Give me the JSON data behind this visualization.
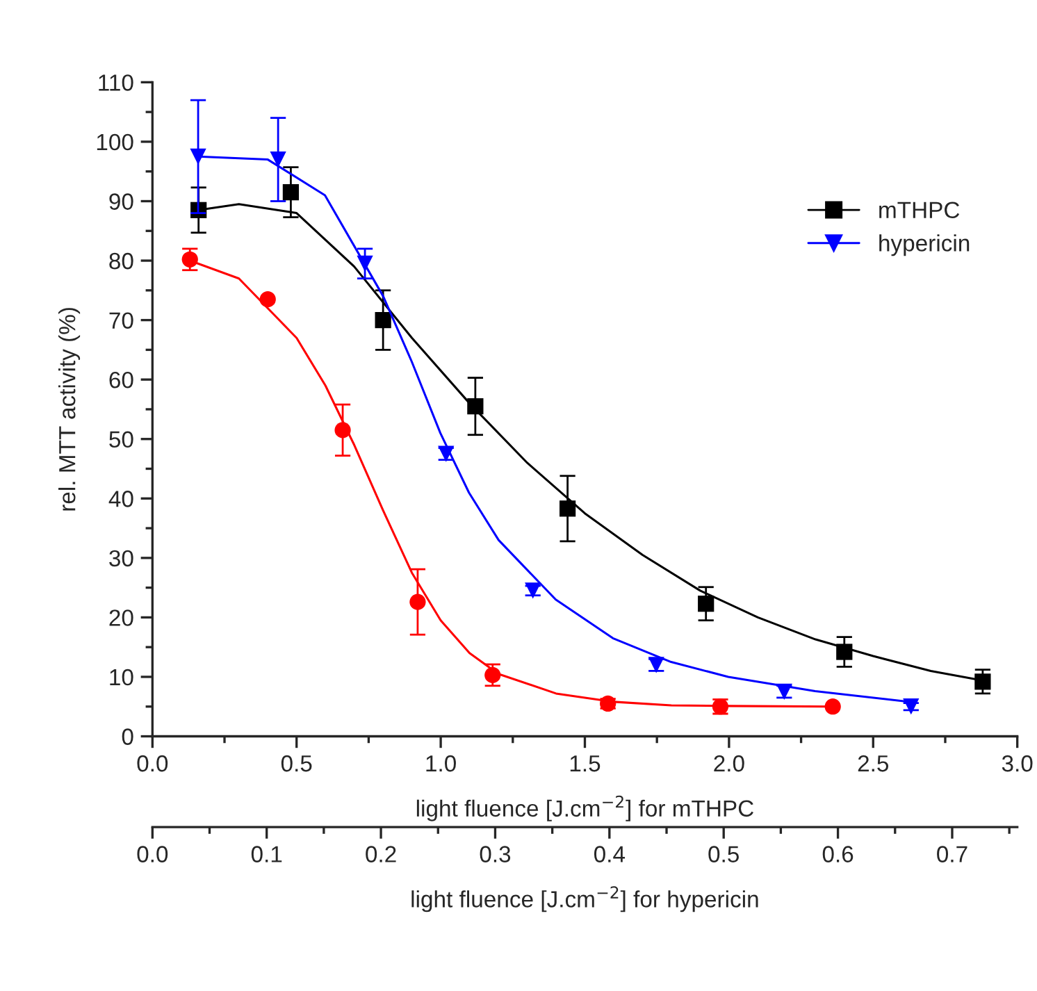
{
  "chart_data": {
    "type": "scatter",
    "xlabel": "light fluence [J.cm$^{−2}$] for mTHPC",
    "x2label": "light fluence [J.cm$^{−2}$] for hypericin",
    "ylabel": "rel. MTT activity (%)",
    "xlim": [
      0,
      3.0
    ],
    "xticks": [
      {
        "value": 0,
        "label": "0.0"
      },
      0.5,
      {
        "value": 1,
        "label": "1.0"
      },
      1.5,
      {
        "value": 2,
        "label": "2.0"
      },
      2.5,
      {
        "value": 3,
        "label": "3.0"
      }
    ],
    "x2lim": [
      0,
      0.757
    ],
    "x2ticks": [
      {
        "value": 0,
        "label": "0.0"
      },
      0.1,
      0.2,
      0.3,
      0.4,
      0.5,
      0.6,
      0.7
    ],
    "ylim": [
      0,
      110
    ],
    "yticks": [
      0,
      10,
      20,
      30,
      40,
      50,
      60,
      70,
      80,
      90,
      100,
      110
    ],
    "grid": false,
    "legend": "top right",
    "series": [
      {
        "name": "mTHPC",
        "marker": "square",
        "color": "#000000",
        "x": [
          0.16,
          0.48,
          0.8,
          1.12,
          1.44,
          1.92,
          2.4,
          2.88
        ],
        "values": [
          88.5,
          91.5,
          70,
          55.5,
          38.3,
          22.3,
          14.2,
          9.2
        ],
        "errors": [
          3.8,
          4.2,
          5,
          4.8,
          5.5,
          2.8,
          2.5,
          2
        ]
      },
      {
        "marker": "circle",
        "color": "#ff0000",
        "x": [
          0.13,
          0.4,
          0.66,
          0.92,
          1.18,
          1.58,
          1.97,
          2.36
        ],
        "values": [
          80.2,
          73.5,
          51.5,
          22.6,
          10.3,
          5.5,
          5,
          5
        ],
        "errors": [
          1.8,
          null,
          4.3,
          5.5,
          1.8,
          0.8,
          1.2,
          null
        ]
      },
      {
        "name": "hypericin",
        "marker": "triangle",
        "color": "#0000ff",
        "axis": "x2",
        "x": [
          0.04,
          0.11,
          0.186,
          0.257,
          0.333,
          0.441,
          0.553,
          0.664
        ],
        "values": [
          97.5,
          97,
          79.5,
          47.5,
          24.5,
          12,
          7.5,
          5
        ],
        "errors": [
          9.5,
          7,
          2.5,
          1,
          0.8,
          1,
          1,
          0.6
        ]
      },
      {
        "type": "line",
        "marker": "none",
        "color": "#000000",
        "x": [
          0.16,
          0.3,
          0.5,
          0.7,
          0.9,
          1.1,
          1.3,
          1.5,
          1.7,
          1.9,
          2.1,
          2.3,
          2.5,
          2.7,
          2.9
        ],
        "values": [
          88.5,
          89.5,
          88,
          79,
          67,
          56,
          46,
          37.5,
          30.5,
          24.5,
          20,
          16.3,
          13.5,
          11,
          9.2
        ]
      },
      {
        "type": "line",
        "marker": "none",
        "color": "#ff0000",
        "x": [
          0.13,
          0.3,
          0.5,
          0.6,
          0.7,
          0.8,
          0.9,
          1.0,
          1.1,
          1.2,
          1.4,
          1.6,
          1.8,
          2.0,
          2.36
        ],
        "values": [
          80,
          77,
          67,
          59,
          49,
          38,
          27.5,
          19.5,
          14,
          10.5,
          7.2,
          5.8,
          5.2,
          5.1,
          5
        ]
      },
      {
        "type": "line",
        "marker": "none",
        "color": "#0000ff",
        "axis": "x2",
        "x": [
          0.04,
          0.101,
          0.151,
          0.202,
          0.227,
          0.252,
          0.277,
          0.303,
          0.353,
          0.403,
          0.454,
          0.504,
          0.58,
          0.663
        ],
        "values": [
          97.5,
          97,
          91,
          74,
          63,
          51,
          41,
          33,
          23,
          16.5,
          12.5,
          10,
          7.6,
          5.8
        ]
      }
    ]
  }
}
